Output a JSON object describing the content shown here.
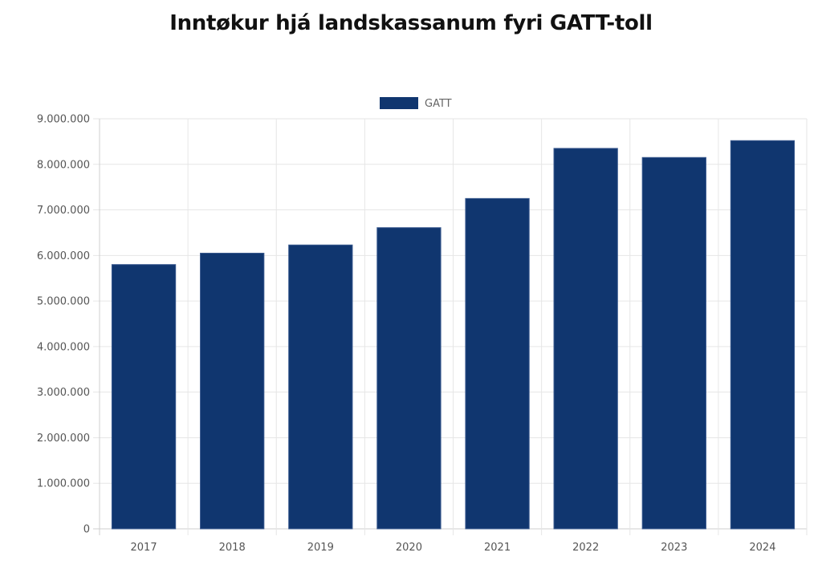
{
  "chart_data": {
    "type": "bar",
    "title": "Inntøkur hjá landskassanum fyri GATT-toll",
    "categories": [
      "2017",
      "2018",
      "2019",
      "2020",
      "2021",
      "2022",
      "2023",
      "2024"
    ],
    "series": [
      {
        "name": "GATT",
        "color": "#10366f",
        "values": [
          5800000,
          6050000,
          6230000,
          6610000,
          7250000,
          8350000,
          8150000,
          8520000
        ]
      }
    ],
    "ylim": [
      0,
      9000000
    ],
    "yticks": [
      "0",
      "1.000.000",
      "2.000.000",
      "3.000.000",
      "4.000.000",
      "5.000.000",
      "6.000.000",
      "7.000.000",
      "8.000.000",
      "9.000.000"
    ],
    "grid": true,
    "legend_position": "top-center",
    "xlabel": "",
    "ylabel": ""
  }
}
